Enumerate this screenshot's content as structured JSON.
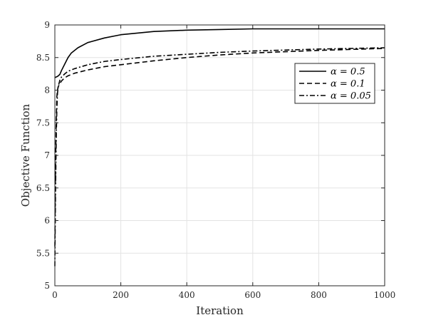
{
  "chart_data": {
    "type": "line",
    "title": "",
    "xlabel": "Iteration",
    "ylabel": "Objective Function",
    "xlim": [
      0,
      1000
    ],
    "ylim": [
      5,
      9
    ],
    "xticks": [
      0,
      200,
      400,
      600,
      800,
      1000
    ],
    "yticks": [
      5,
      5.5,
      6,
      6.5,
      7,
      7.5,
      8,
      8.5,
      9
    ],
    "xtick_labels": [
      "0",
      "200",
      "400",
      "600",
      "800",
      "1000"
    ],
    "ytick_labels": [
      "5",
      "5.5",
      "6",
      "6.5",
      "7",
      "7.5",
      "8",
      "8.5",
      "9"
    ],
    "grid": true,
    "legend_position": "top-right",
    "series": [
      {
        "name": "α = 0.5",
        "line_style": "solid",
        "x": [
          0,
          3,
          8,
          15,
          20,
          30,
          40,
          50,
          70,
          100,
          150,
          200,
          300,
          400,
          500,
          600,
          800,
          1000
        ],
        "y": [
          8.19,
          8.2,
          8.21,
          8.24,
          8.3,
          8.4,
          8.5,
          8.57,
          8.65,
          8.73,
          8.8,
          8.85,
          8.9,
          8.92,
          8.93,
          8.94,
          8.94,
          8.94
        ]
      },
      {
        "name": "α = 0.1",
        "line_style": "dashed",
        "x": [
          0,
          2,
          4,
          6,
          8,
          10,
          15,
          20,
          30,
          40,
          60,
          100,
          150,
          200,
          300,
          400,
          500,
          600,
          800,
          1000
        ],
        "y": [
          5.6,
          6.8,
          7.5,
          7.9,
          8.0,
          8.05,
          8.1,
          8.14,
          8.19,
          8.22,
          8.26,
          8.31,
          8.36,
          8.39,
          8.45,
          8.5,
          8.54,
          8.57,
          8.61,
          8.64
        ]
      },
      {
        "name": "α = 0.05",
        "line_style": "dash-dot",
        "x": [
          0,
          2,
          4,
          6,
          8,
          10,
          15,
          20,
          30,
          40,
          60,
          100,
          150,
          200,
          300,
          400,
          500,
          600,
          800,
          1000
        ],
        "y": [
          5.3,
          6.4,
          7.2,
          7.7,
          7.95,
          8.05,
          8.15,
          8.2,
          8.25,
          8.29,
          8.33,
          8.39,
          8.44,
          8.47,
          8.52,
          8.55,
          8.58,
          8.6,
          8.63,
          8.65
        ]
      }
    ]
  }
}
